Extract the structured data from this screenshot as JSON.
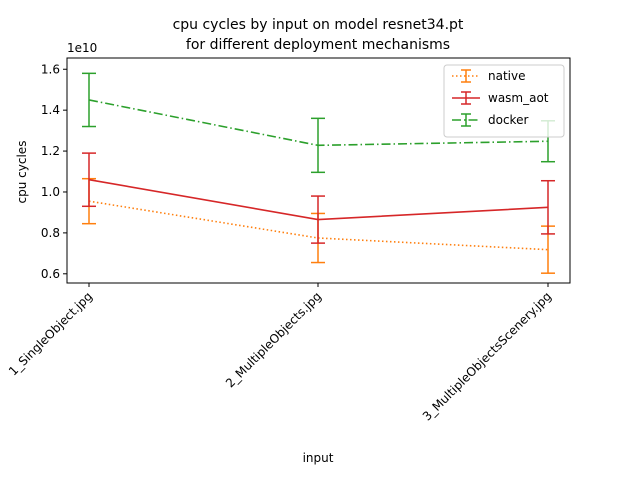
{
  "chart_data": {
    "type": "line",
    "title": "cpu cycles by input on model resnet34.pt\nfor different deployment mechanisms",
    "xlabel": "input",
    "ylabel": "cpu cycles",
    "scale_label": "1e10",
    "categories": [
      "1_SingleObject.jpg",
      "2_MultipleObjects.jpg",
      "3_MultipleObjectsScenery.jpg"
    ],
    "yticks": [
      0.6,
      0.8,
      1.0,
      1.2,
      1.4,
      1.6
    ],
    "ytick_labels": [
      "0.6",
      "0.8",
      "1.0",
      "1.2",
      "1.4",
      "1.6"
    ],
    "ylim": [
      0.555,
      1.655
    ],
    "legend_position": "upper right",
    "series": [
      {
        "name": "native",
        "color": "#ff7f0e",
        "linestyle": "dotted",
        "values": [
          0.955,
          0.775,
          0.718
        ],
        "err": [
          0.11,
          0.12,
          0.115
        ]
      },
      {
        "name": "wasm_aot",
        "color": "#d62728",
        "linestyle": "solid",
        "values": [
          1.06,
          0.865,
          0.925
        ],
        "err": [
          0.13,
          0.115,
          0.13
        ]
      },
      {
        "name": "docker",
        "color": "#2ca02c",
        "linestyle": "dashdot",
        "values": [
          1.45,
          1.228,
          1.248
        ],
        "err": [
          0.13,
          0.132,
          0.1
        ]
      }
    ]
  }
}
